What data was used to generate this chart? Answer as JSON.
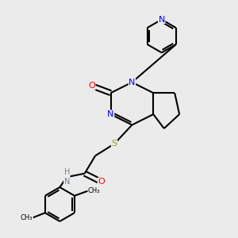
{
  "background_color": "#ebebeb",
  "bond_color": "#000000",
  "atom_colors": {
    "N": "#0000ff",
    "O": "#ff0000",
    "S": "#999900",
    "H": "#708090"
  },
  "figsize": [
    3.0,
    3.0
  ],
  "dpi": 100
}
